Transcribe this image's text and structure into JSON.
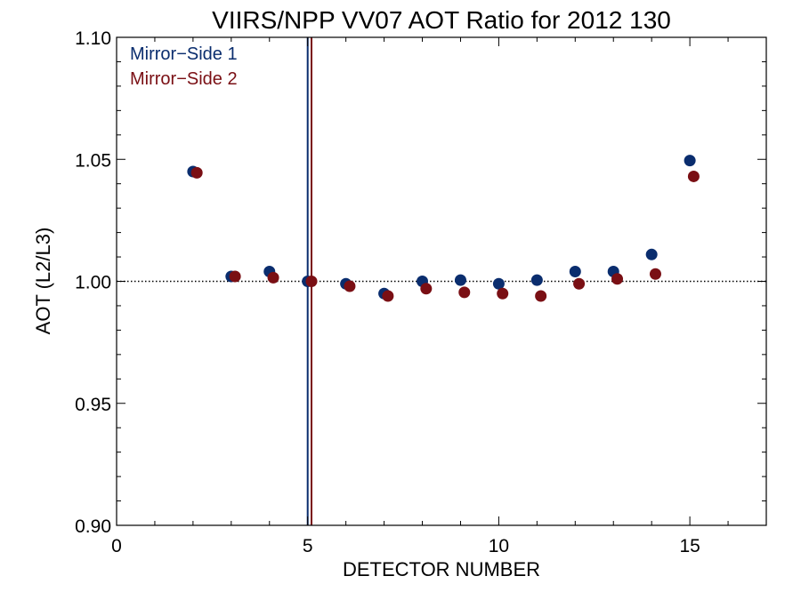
{
  "chart_data": {
    "type": "scatter",
    "title": "VIIRS/NPP VV07 AOT Ratio for 2012 130",
    "xlabel": "DETECTOR NUMBER",
    "ylabel": "AOT (L2/L3)",
    "xlim": [
      0,
      17
    ],
    "ylim": [
      0.9,
      1.1
    ],
    "x_ticks": [
      0,
      5,
      10,
      15
    ],
    "x_tick_labels": [
      "0",
      "5",
      "10",
      "15"
    ],
    "y_ticks": [
      0.9,
      0.95,
      1.0,
      1.05,
      1.1
    ],
    "y_tick_labels": [
      "0.90",
      "0.95",
      "1.00",
      "1.05",
      "1.10"
    ],
    "reference_line": {
      "y": 1.0,
      "style": "dotted"
    },
    "vertical_lines": [
      {
        "x": 5.0,
        "series": 0
      },
      {
        "x": 5.1,
        "series": 1
      }
    ],
    "legend_position": "top-left",
    "series": [
      {
        "name": "Mirror−Side 1",
        "color": "#0a2d6e",
        "x": [
          2,
          3,
          4,
          5,
          6,
          7,
          8,
          9,
          10,
          11,
          12,
          13,
          14,
          15
        ],
        "y": [
          1.045,
          1.002,
          1.004,
          1.0,
          0.999,
          0.995,
          1.0,
          1.0005,
          0.999,
          1.0005,
          1.004,
          1.004,
          1.011,
          1.0495
        ]
      },
      {
        "name": "Mirror−Side 2",
        "color": "#7a0f14",
        "x": [
          2.1,
          3.1,
          4.1,
          5.1,
          6.1,
          7.1,
          8.1,
          9.1,
          10.1,
          11.1,
          12.1,
          13.1,
          14.1,
          15.1
        ],
        "y": [
          1.0445,
          1.002,
          1.0015,
          1.0,
          0.998,
          0.994,
          0.997,
          0.9955,
          0.995,
          0.994,
          0.999,
          1.001,
          1.003,
          1.043
        ]
      }
    ]
  }
}
